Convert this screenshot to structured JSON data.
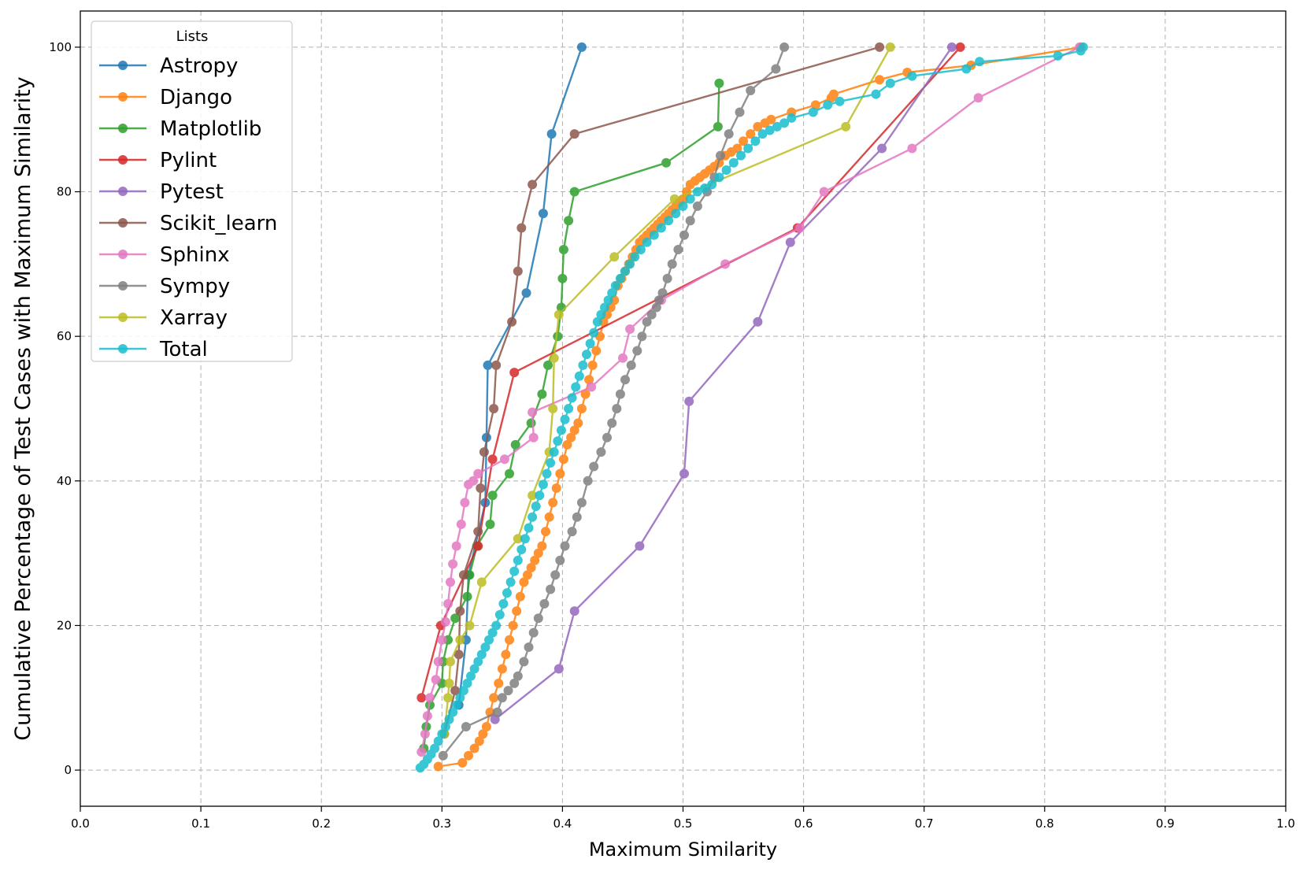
{
  "chart_data": {
    "type": "line",
    "title": "",
    "xlabel": "Maximum Similarity",
    "ylabel": "Cumulative Percentage of Test Cases with Maximum Similarity",
    "xlim": [
      0.0,
      1.0
    ],
    "ylim": [
      -5,
      105
    ],
    "xticks": [
      0.0,
      0.1,
      0.2,
      0.3,
      0.4,
      0.5,
      0.6,
      0.7,
      0.8,
      0.9,
      1.0
    ],
    "xtick_labels": [
      "0.0",
      "0.1",
      "0.2",
      "0.3",
      "0.4",
      "0.5",
      "0.6",
      "0.7",
      "0.8",
      "0.9",
      "1.0"
    ],
    "yticks": [
      0,
      20,
      40,
      60,
      80,
      100
    ],
    "ytick_labels": [
      "0",
      "20",
      "40",
      "60",
      "80",
      "100"
    ],
    "grid": true,
    "legend": {
      "title": "Lists",
      "position": "upper-left"
    },
    "series": [
      {
        "name": "Astropy",
        "color": "#1f77b4",
        "x": [
          0.314,
          0.32,
          0.322,
          0.336,
          0.337,
          0.338,
          0.37,
          0.384,
          0.391,
          0.416
        ],
        "y": [
          9,
          18,
          27,
          37,
          46,
          56,
          66,
          77,
          88,
          100
        ]
      },
      {
        "name": "Django",
        "color": "#ff7f0e",
        "x": [
          0.297,
          0.317,
          0.322,
          0.327,
          0.331,
          0.334,
          0.337,
          0.34,
          0.343,
          0.347,
          0.35,
          0.353,
          0.356,
          0.359,
          0.362,
          0.365,
          0.368,
          0.371,
          0.374,
          0.377,
          0.38,
          0.383,
          0.386,
          0.389,
          0.392,
          0.395,
          0.398,
          0.401,
          0.404,
          0.407,
          0.41,
          0.413,
          0.416,
          0.419,
          0.422,
          0.425,
          0.428,
          0.431,
          0.434,
          0.437,
          0.44,
          0.443,
          0.446,
          0.449,
          0.452,
          0.455,
          0.458,
          0.461,
          0.464,
          0.467,
          0.47,
          0.473,
          0.476,
          0.479,
          0.482,
          0.485,
          0.488,
          0.491,
          0.494,
          0.497,
          0.5,
          0.503,
          0.506,
          0.51,
          0.514,
          0.518,
          0.522,
          0.526,
          0.53,
          0.535,
          0.54,
          0.545,
          0.55,
          0.556,
          0.562,
          0.568,
          0.573,
          0.59,
          0.61,
          0.623,
          0.625,
          0.663,
          0.686,
          0.739,
          0.83
        ],
        "y": [
          0.5,
          1,
          2,
          3,
          4,
          5,
          6,
          8,
          10,
          12,
          14,
          16,
          18,
          20,
          22,
          24,
          26,
          27,
          28,
          29,
          30,
          31,
          33,
          35,
          37,
          39,
          41,
          43,
          45,
          46,
          47,
          48,
          50,
          52,
          54,
          56,
          58,
          60,
          62,
          63,
          64,
          65,
          67,
          68,
          69,
          70,
          71,
          72,
          73,
          73.5,
          74,
          74.5,
          75,
          75.5,
          76,
          76.5,
          77,
          77.5,
          78,
          78.5,
          79,
          80,
          81,
          81.5,
          82,
          82.5,
          83,
          83.5,
          84,
          85,
          85.5,
          86,
          87,
          88,
          89,
          89.5,
          90,
          91,
          92,
          93,
          93.5,
          95.5,
          96.5,
          97.5,
          100
        ]
      },
      {
        "name": "Matplotlib",
        "color": "#2ca02c",
        "x": [
          0.285,
          0.287,
          0.29,
          0.3,
          0.301,
          0.305,
          0.311,
          0.321,
          0.323,
          0.329,
          0.34,
          0.342,
          0.356,
          0.361,
          0.374,
          0.383,
          0.388,
          0.396,
          0.399,
          0.4,
          0.401,
          0.405,
          0.41,
          0.486,
          0.529,
          0.53
        ],
        "y": [
          3,
          6,
          9,
          12,
          15,
          18,
          21,
          24,
          27,
          31,
          34,
          38,
          41,
          45,
          48,
          52,
          56,
          60,
          64,
          68,
          72,
          76,
          80,
          84,
          89,
          95
        ]
      },
      {
        "name": "Pylint",
        "color": "#d62728",
        "x": [
          0.283,
          0.299,
          0.33,
          0.342,
          0.36,
          0.595,
          0.73
        ],
        "y": [
          10,
          20,
          31,
          43,
          55,
          75,
          100
        ]
      },
      {
        "name": "Pytest",
        "color": "#9467bd",
        "x": [
          0.344,
          0.397,
          0.41,
          0.464,
          0.501,
          0.505,
          0.562,
          0.589,
          0.665,
          0.723
        ],
        "y": [
          7,
          14,
          22,
          31,
          41,
          51,
          62,
          73,
          86,
          100
        ]
      },
      {
        "name": "Scikit_learn",
        "color": "#8c564b",
        "x": [
          0.302,
          0.311,
          0.314,
          0.315,
          0.318,
          0.33,
          0.332,
          0.335,
          0.343,
          0.345,
          0.358,
          0.363,
          0.366,
          0.375,
          0.41,
          0.663
        ],
        "y": [
          5,
          11,
          16,
          22,
          27,
          33,
          39,
          44,
          50,
          56,
          62,
          69,
          75,
          81,
          88,
          100
        ]
      },
      {
        "name": "Sphinx",
        "color": "#e377c2",
        "x": [
          0.283,
          0.286,
          0.288,
          0.29,
          0.295,
          0.297,
          0.3,
          0.303,
          0.305,
          0.307,
          0.309,
          0.312,
          0.316,
          0.319,
          0.322,
          0.326,
          0.33,
          0.352,
          0.376,
          0.375,
          0.424,
          0.45,
          0.456,
          0.482,
          0.535,
          0.597,
          0.617,
          0.69,
          0.745,
          0.829
        ],
        "y": [
          2.5,
          5,
          7.5,
          10,
          12.5,
          15,
          18,
          20.5,
          23,
          26,
          28.5,
          31,
          34,
          37,
          39.5,
          40,
          41,
          43,
          46,
          49.5,
          53,
          57,
          61,
          65,
          70,
          75,
          80,
          86,
          93,
          100
        ]
      },
      {
        "name": "Sympy",
        "color": "#7f7f7f",
        "x": [
          0.301,
          0.32,
          0.346,
          0.35,
          0.355,
          0.36,
          0.363,
          0.368,
          0.372,
          0.376,
          0.38,
          0.385,
          0.39,
          0.394,
          0.398,
          0.402,
          0.408,
          0.412,
          0.416,
          0.421,
          0.426,
          0.432,
          0.437,
          0.441,
          0.445,
          0.448,
          0.452,
          0.457,
          0.462,
          0.466,
          0.47,
          0.474,
          0.478,
          0.48,
          0.483,
          0.487,
          0.491,
          0.496,
          0.501,
          0.506,
          0.512,
          0.52,
          0.526,
          0.531,
          0.538,
          0.547,
          0.556,
          0.577,
          0.584
        ],
        "y": [
          2,
          6,
          8,
          10,
          11,
          12,
          13,
          15,
          17,
          19,
          21,
          23,
          25,
          27,
          29,
          31,
          33,
          35,
          37,
          40,
          42,
          44,
          46,
          48,
          50,
          52,
          54,
          56,
          58,
          60,
          62,
          63,
          64,
          65,
          66,
          68,
          70,
          72,
          74,
          76,
          78,
          80,
          82,
          85,
          88,
          91,
          94,
          97,
          100
        ]
      },
      {
        "name": "Xarray",
        "color": "#bcbd22",
        "x": [
          0.302,
          0.305,
          0.306,
          0.307,
          0.315,
          0.323,
          0.333,
          0.363,
          0.375,
          0.389,
          0.392,
          0.393,
          0.397,
          0.443,
          0.493,
          0.635,
          0.672
        ],
        "y": [
          5,
          10,
          12,
          15,
          18,
          20,
          26,
          32,
          38,
          44,
          50,
          57,
          63,
          71,
          79,
          89,
          100
        ]
      },
      {
        "name": "Total",
        "color": "#17becf",
        "x": [
          0.282,
          0.285,
          0.288,
          0.291,
          0.294,
          0.297,
          0.3,
          0.303,
          0.306,
          0.309,
          0.312,
          0.315,
          0.318,
          0.321,
          0.324,
          0.327,
          0.33,
          0.333,
          0.336,
          0.339,
          0.342,
          0.345,
          0.348,
          0.351,
          0.354,
          0.357,
          0.36,
          0.363,
          0.366,
          0.369,
          0.372,
          0.375,
          0.378,
          0.381,
          0.384,
          0.387,
          0.39,
          0.393,
          0.396,
          0.399,
          0.402,
          0.405,
          0.408,
          0.411,
          0.414,
          0.417,
          0.42,
          0.423,
          0.426,
          0.429,
          0.432,
          0.435,
          0.438,
          0.441,
          0.444,
          0.448,
          0.452,
          0.456,
          0.46,
          0.465,
          0.47,
          0.476,
          0.482,
          0.488,
          0.494,
          0.5,
          0.506,
          0.512,
          0.518,
          0.524,
          0.53,
          0.536,
          0.542,
          0.548,
          0.554,
          0.56,
          0.566,
          0.572,
          0.578,
          0.584,
          0.59,
          0.608,
          0.62,
          0.63,
          0.66,
          0.672,
          0.69,
          0.735,
          0.746,
          0.811,
          0.83,
          0.832
        ],
        "y": [
          0.3,
          0.8,
          1.5,
          2.2,
          3,
          4,
          5,
          6,
          7,
          8,
          9,
          10,
          11,
          12,
          13,
          14,
          15,
          16,
          17,
          18,
          19,
          20,
          21.5,
          23,
          24.5,
          26,
          27.5,
          29,
          30.5,
          32,
          33.5,
          35,
          36.5,
          38,
          39.5,
          41,
          42.5,
          44,
          45.5,
          47,
          48.5,
          50,
          51.5,
          53,
          54.5,
          56,
          57.5,
          59,
          60.5,
          62,
          63,
          64,
          65,
          66,
          67,
          68,
          69,
          70,
          71,
          72,
          73,
          74,
          75,
          76,
          77,
          78,
          79,
          80,
          80.5,
          81,
          82,
          83,
          84,
          85,
          86,
          87,
          88,
          88.5,
          89,
          89.5,
          90.2,
          91,
          92,
          92.5,
          93.5,
          95,
          96,
          97,
          98,
          98.8,
          99.5,
          100
        ]
      }
    ]
  }
}
